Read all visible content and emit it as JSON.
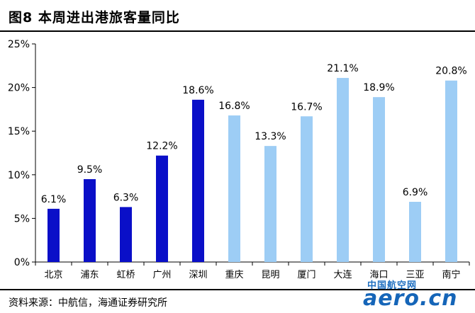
{
  "figure": {
    "title": "图8   本周进出港旅客量同比",
    "source": "资料来源：中航信，海通证券研究所"
  },
  "watermark": {
    "cn": "中国航空网",
    "en": "aero.cn"
  },
  "colors": {
    "group_a": "#0a0fc8",
    "group_b": "#9dcdf5",
    "axis": "#000000"
  },
  "chart_data": {
    "type": "bar",
    "title": "本周进出港旅客量同比",
    "categories": [
      "北京",
      "浦东",
      "虹桥",
      "广州",
      "深圳",
      "重庆",
      "昆明",
      "厦门",
      "大连",
      "海口",
      "三亚",
      "南宁"
    ],
    "values": [
      6.1,
      9.5,
      6.3,
      12.2,
      18.6,
      16.8,
      13.3,
      16.7,
      21.1,
      18.9,
      6.9,
      20.8
    ],
    "value_labels": [
      "6.1%",
      "9.5%",
      "6.3%",
      "12.2%",
      "18.6%",
      "16.8%",
      "13.3%",
      "16.7%",
      "21.1%",
      "18.9%",
      "6.9%",
      "20.8%"
    ],
    "bar_color_groups": [
      "a",
      "a",
      "a",
      "a",
      "a",
      "b",
      "b",
      "b",
      "b",
      "b",
      "b",
      "b"
    ],
    "y_ticks": [
      0,
      5,
      10,
      15,
      20,
      25
    ],
    "y_tick_labels": [
      "0%",
      "5%",
      "10%",
      "15%",
      "20%",
      "25%"
    ],
    "ylim": [
      0,
      25
    ],
    "xlabel": "",
    "ylabel": "",
    "grid": false,
    "legend": "none"
  }
}
